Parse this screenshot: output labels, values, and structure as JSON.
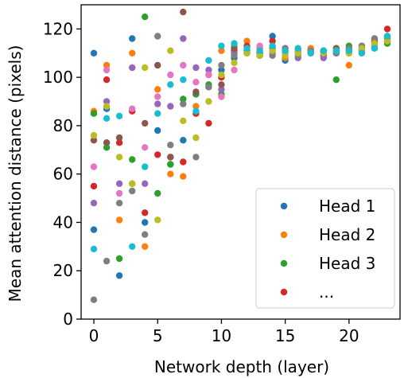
{
  "chart_data": {
    "type": "scatter",
    "title": "",
    "xlabel": "Network depth (layer)",
    "ylabel": "Mean attention distance (pixels)",
    "xlim": [
      -1,
      24
    ],
    "ylim": [
      0,
      130
    ],
    "xticks": [
      0,
      5,
      10,
      15,
      20
    ],
    "yticks": [
      0,
      20,
      40,
      60,
      80,
      100,
      120
    ],
    "grid": false,
    "legend_position": "bottom-right",
    "legend": [
      "Head 1",
      "Head 2",
      "Head 3",
      "..."
    ],
    "colors": [
      "#1f77b4",
      "#ff7f0e",
      "#2ca02c",
      "#d62728",
      "#9467bd",
      "#8c564b",
      "#e377c2",
      "#7f7f7f",
      "#bcbd22",
      "#17becf"
    ],
    "series": [
      {
        "color": "#1f77b4",
        "points": [
          [
            0,
            110
          ],
          [
            0,
            37
          ],
          [
            1,
            87
          ],
          [
            2,
            18
          ],
          [
            3,
            116
          ],
          [
            4,
            40
          ],
          [
            5,
            78
          ],
          [
            6,
            64
          ],
          [
            7,
            74
          ],
          [
            8,
            93
          ],
          [
            9,
            96
          ],
          [
            10,
            103
          ],
          [
            11,
            108
          ],
          [
            12,
            110
          ],
          [
            13,
            109
          ],
          [
            14,
            117
          ],
          [
            15,
            107
          ],
          [
            16,
            111
          ],
          [
            17,
            110
          ],
          [
            18,
            111
          ],
          [
            19,
            110
          ],
          [
            20,
            110
          ],
          [
            21,
            111
          ],
          [
            22,
            112
          ],
          [
            23,
            115
          ]
        ]
      },
      {
        "color": "#ff7f0e",
        "points": [
          [
            0,
            86
          ],
          [
            1,
            105
          ],
          [
            2,
            41
          ],
          [
            3,
            110
          ],
          [
            4,
            30
          ],
          [
            5,
            95
          ],
          [
            6,
            60
          ],
          [
            7,
            59
          ],
          [
            8,
            88
          ],
          [
            9,
            101
          ],
          [
            10,
            111
          ],
          [
            11,
            113
          ],
          [
            12,
            115
          ],
          [
            13,
            112
          ],
          [
            14,
            113
          ],
          [
            15,
            108
          ],
          [
            16,
            110
          ],
          [
            17,
            112
          ],
          [
            18,
            111
          ],
          [
            19,
            112
          ],
          [
            20,
            105
          ],
          [
            21,
            110
          ],
          [
            22,
            114
          ],
          [
            23,
            116
          ]
        ]
      },
      {
        "color": "#2ca02c",
        "points": [
          [
            0,
            85
          ],
          [
            1,
            71
          ],
          [
            2,
            25
          ],
          [
            3,
            66
          ],
          [
            4,
            125
          ],
          [
            5,
            52
          ],
          [
            6,
            64
          ],
          [
            7,
            91
          ],
          [
            8,
            93
          ],
          [
            9,
            97
          ],
          [
            10,
            93
          ],
          [
            11,
            110
          ],
          [
            12,
            110
          ],
          [
            13,
            110
          ],
          [
            14,
            110
          ],
          [
            15,
            110
          ],
          [
            16,
            111
          ],
          [
            17,
            110
          ],
          [
            18,
            111
          ],
          [
            19,
            99
          ],
          [
            20,
            113
          ],
          [
            21,
            113
          ],
          [
            22,
            113
          ],
          [
            23,
            114
          ]
        ]
      },
      {
        "color": "#d62728",
        "points": [
          [
            0,
            55
          ],
          [
            1,
            99
          ],
          [
            2,
            73
          ],
          [
            3,
            86
          ],
          [
            4,
            44
          ],
          [
            5,
            68
          ],
          [
            6,
            67
          ],
          [
            7,
            65
          ],
          [
            8,
            85
          ],
          [
            9,
            81
          ],
          [
            10,
            100
          ],
          [
            11,
            111
          ],
          [
            12,
            113
          ],
          [
            13,
            111
          ],
          [
            14,
            115
          ],
          [
            15,
            112
          ],
          [
            16,
            110
          ],
          [
            17,
            111
          ],
          [
            18,
            109
          ],
          [
            19,
            111
          ],
          [
            20,
            112
          ],
          [
            21,
            111
          ],
          [
            22,
            115
          ],
          [
            23,
            120
          ]
        ]
      },
      {
        "color": "#9467bd",
        "points": [
          [
            0,
            48
          ],
          [
            1,
            90
          ],
          [
            2,
            56
          ],
          [
            3,
            104
          ],
          [
            4,
            56
          ],
          [
            5,
            89
          ],
          [
            6,
            88
          ],
          [
            7,
            116
          ],
          [
            8,
            104
          ],
          [
            9,
            103
          ],
          [
            10,
            95
          ],
          [
            11,
            110
          ],
          [
            12,
            110
          ],
          [
            13,
            109
          ],
          [
            14,
            110
          ],
          [
            15,
            110
          ],
          [
            16,
            108
          ],
          [
            17,
            110
          ],
          [
            18,
            108
          ],
          [
            19,
            110
          ],
          [
            20,
            111
          ],
          [
            21,
            112
          ],
          [
            22,
            113
          ],
          [
            23,
            115
          ]
        ]
      },
      {
        "color": "#8c564b",
        "points": [
          [
            0,
            74
          ],
          [
            1,
            73
          ],
          [
            2,
            75
          ],
          [
            3,
            56
          ],
          [
            4,
            81
          ],
          [
            5,
            105
          ],
          [
            6,
            67
          ],
          [
            7,
            127
          ],
          [
            8,
            94
          ],
          [
            9,
            96
          ],
          [
            10,
            97
          ],
          [
            11,
            112
          ],
          [
            12,
            111
          ],
          [
            13,
            110
          ],
          [
            14,
            112
          ],
          [
            15,
            111
          ],
          [
            16,
            110
          ],
          [
            17,
            111
          ],
          [
            18,
            110
          ],
          [
            19,
            112
          ],
          [
            20,
            110
          ],
          [
            21,
            112
          ],
          [
            22,
            116
          ],
          [
            23,
            117
          ]
        ]
      },
      {
        "color": "#e377c2",
        "points": [
          [
            0,
            63
          ],
          [
            1,
            103
          ],
          [
            2,
            52
          ],
          [
            3,
            87
          ],
          [
            4,
            71
          ],
          [
            5,
            92
          ],
          [
            6,
            101
          ],
          [
            7,
            105
          ],
          [
            8,
            98
          ],
          [
            9,
            101
          ],
          [
            10,
            92
          ],
          [
            11,
            103
          ],
          [
            12,
            110
          ],
          [
            13,
            113
          ],
          [
            14,
            110
          ],
          [
            15,
            110
          ],
          [
            16,
            111
          ],
          [
            17,
            111
          ],
          [
            18,
            110
          ],
          [
            19,
            111
          ],
          [
            20,
            110
          ],
          [
            21,
            111
          ],
          [
            22,
            113
          ],
          [
            23,
            115
          ]
        ]
      },
      {
        "color": "#7f7f7f",
        "points": [
          [
            0,
            8
          ],
          [
            1,
            24
          ],
          [
            2,
            48
          ],
          [
            3,
            53
          ],
          [
            4,
            35
          ],
          [
            5,
            117
          ],
          [
            6,
            72
          ],
          [
            7,
            89
          ],
          [
            8,
            67
          ],
          [
            9,
            96
          ],
          [
            10,
            105
          ],
          [
            11,
            109
          ],
          [
            12,
            111
          ],
          [
            13,
            109
          ],
          [
            14,
            109
          ],
          [
            15,
            112
          ],
          [
            16,
            109
          ],
          [
            17,
            111
          ],
          [
            18,
            110
          ],
          [
            19,
            110
          ],
          [
            20,
            112
          ],
          [
            21,
            113
          ],
          [
            22,
            116
          ],
          [
            23,
            116
          ]
        ]
      },
      {
        "color": "#bcbd22",
        "points": [
          [
            0,
            76
          ],
          [
            1,
            88
          ],
          [
            2,
            67
          ],
          [
            3,
            56
          ],
          [
            4,
            104
          ],
          [
            5,
            41
          ],
          [
            6,
            111
          ],
          [
            7,
            82
          ],
          [
            8,
            75
          ],
          [
            9,
            90
          ],
          [
            10,
            101
          ],
          [
            11,
            106
          ],
          [
            12,
            110
          ],
          [
            13,
            109
          ],
          [
            14,
            111
          ],
          [
            15,
            109
          ],
          [
            16,
            110
          ],
          [
            17,
            110
          ],
          [
            18,
            110
          ],
          [
            19,
            111
          ],
          [
            20,
            110
          ],
          [
            21,
            112
          ],
          [
            22,
            114
          ],
          [
            23,
            115
          ]
        ]
      },
      {
        "color": "#17becf",
        "points": [
          [
            0,
            29
          ],
          [
            1,
            83
          ],
          [
            2,
            84
          ],
          [
            3,
            30
          ],
          [
            4,
            63
          ],
          [
            5,
            85
          ],
          [
            6,
            97
          ],
          [
            7,
            99
          ],
          [
            8,
            86
          ],
          [
            9,
            107
          ],
          [
            10,
            113
          ],
          [
            11,
            114
          ],
          [
            12,
            112
          ],
          [
            13,
            111
          ],
          [
            14,
            113
          ],
          [
            15,
            111
          ],
          [
            16,
            112
          ],
          [
            17,
            110
          ],
          [
            18,
            111
          ],
          [
            19,
            111
          ],
          [
            20,
            111
          ],
          [
            21,
            110
          ],
          [
            22,
            112
          ],
          [
            23,
            117
          ]
        ]
      }
    ]
  }
}
